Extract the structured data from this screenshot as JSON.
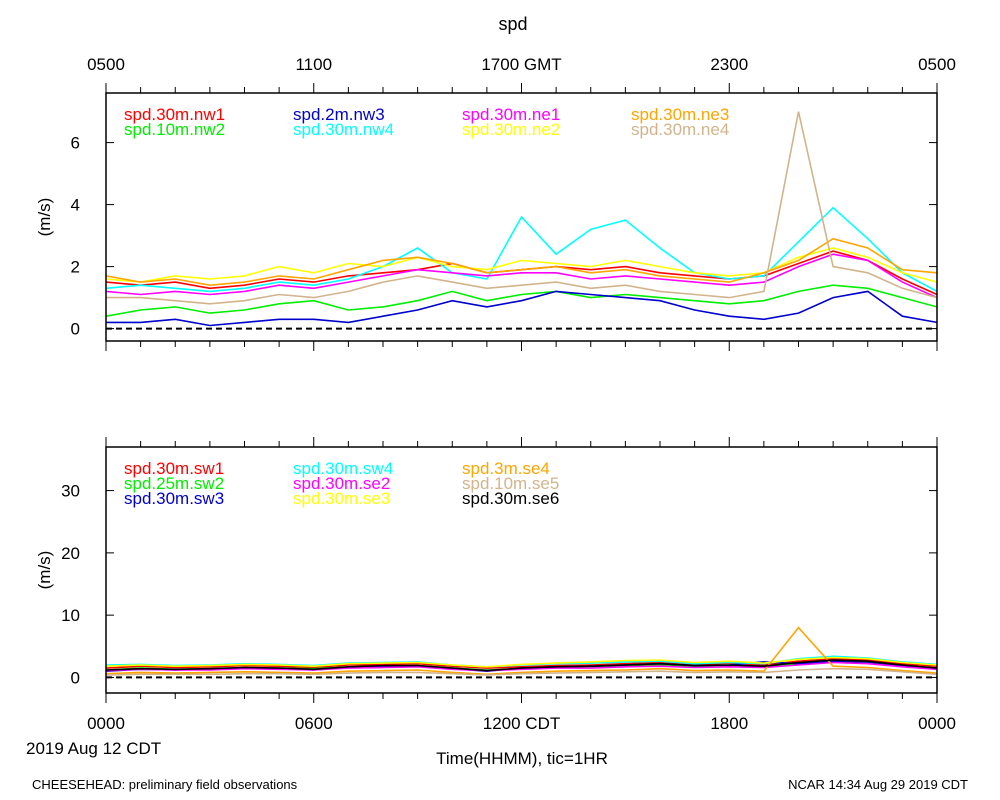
{
  "chart_data": {
    "type": "line",
    "title": "spd",
    "top_axis_ticks": [
      "0500",
      "1100",
      "1700 GMT",
      "2300",
      "0500"
    ],
    "bottom_axis_ticks": [
      "0000",
      "0600",
      "1200 CDT",
      "1800",
      "0000"
    ],
    "x_range_hours": [
      0,
      24
    ],
    "date_label": "2019 Aug 12 CDT",
    "xlabel": "Time(HHMM), tic=1HR",
    "footer_left": "CHEESEHEAD: preliminary field observations",
    "footer_right": "NCAR 14:34 Aug 29 2019 CDT",
    "panels": [
      {
        "ylabel": "(m/s)",
        "ylim": [
          -0.4,
          7.6
        ],
        "yticks": [
          0,
          2,
          4,
          6
        ],
        "zero_line": true,
        "series": [
          {
            "name": "spd.30m.nw1",
            "color": "#ff0000",
            "x": [
              0,
              1,
              2,
              3,
              4,
              5,
              6,
              7,
              8,
              9,
              10,
              11,
              12,
              13,
              14,
              15,
              16,
              17,
              18,
              19,
              20,
              21,
              22,
              23,
              24
            ],
            "values": [
              1.5,
              1.4,
              1.5,
              1.3,
              1.4,
              1.6,
              1.5,
              1.7,
              1.8,
              1.9,
              2.1,
              1.8,
              1.9,
              2.0,
              1.9,
              2.0,
              1.8,
              1.7,
              1.6,
              1.7,
              2.1,
              2.5,
              2.2,
              1.6,
              1.1
            ]
          },
          {
            "name": "spd.10m.nw2",
            "color": "#00ee00",
            "x": [
              0,
              1,
              2,
              3,
              4,
              5,
              6,
              7,
              8,
              9,
              10,
              11,
              12,
              13,
              14,
              15,
              16,
              17,
              18,
              19,
              20,
              21,
              22,
              23,
              24
            ],
            "values": [
              0.4,
              0.6,
              0.7,
              0.5,
              0.6,
              0.8,
              0.9,
              0.6,
              0.7,
              0.9,
              1.2,
              0.9,
              1.1,
              1.2,
              1.0,
              1.1,
              1.0,
              0.9,
              0.8,
              0.9,
              1.2,
              1.4,
              1.3,
              1.0,
              0.7
            ]
          },
          {
            "name": "spd.2m.nw3",
            "color": "#0000cc",
            "x": [
              0,
              1,
              2,
              3,
              4,
              5,
              6,
              7,
              8,
              9,
              10,
              11,
              12,
              13,
              14,
              15,
              16,
              17,
              18,
              19,
              20,
              21,
              22,
              23,
              24
            ],
            "values": [
              0.2,
              0.2,
              0.3,
              0.1,
              0.2,
              0.3,
              0.3,
              0.2,
              0.4,
              0.6,
              0.9,
              0.7,
              0.9,
              1.2,
              1.1,
              1.0,
              0.9,
              0.6,
              0.4,
              0.3,
              0.5,
              1.0,
              1.2,
              0.4,
              0.2
            ]
          },
          {
            "name": "spd.30m.nw4",
            "color": "#00ffff",
            "x": [
              0,
              1,
              2,
              3,
              4,
              5,
              6,
              7,
              8,
              9,
              10,
              11,
              12,
              13,
              14,
              15,
              16,
              17,
              18,
              19,
              20,
              21,
              22,
              23,
              24
            ],
            "values": [
              1.3,
              1.4,
              1.3,
              1.2,
              1.3,
              1.5,
              1.4,
              1.6,
              2.0,
              2.6,
              1.8,
              1.6,
              3.6,
              2.4,
              3.2,
              3.5,
              2.6,
              1.8,
              1.6,
              1.7,
              2.8,
              3.9,
              2.9,
              1.8,
              1.2
            ]
          },
          {
            "name": "spd.30m.ne1",
            "color": "#ff00ff",
            "x": [
              0,
              1,
              2,
              3,
              4,
              5,
              6,
              7,
              8,
              9,
              10,
              11,
              12,
              13,
              14,
              15,
              16,
              17,
              18,
              19,
              20,
              21,
              22,
              23,
              24
            ],
            "values": [
              1.2,
              1.1,
              1.2,
              1.1,
              1.2,
              1.4,
              1.3,
              1.5,
              1.7,
              1.9,
              1.8,
              1.7,
              1.8,
              1.8,
              1.6,
              1.7,
              1.6,
              1.5,
              1.4,
              1.5,
              2.0,
              2.4,
              2.2,
              1.5,
              1.0
            ]
          },
          {
            "name": "spd.30m.ne2",
            "color": "#ffff00",
            "x": [
              0,
              1,
              2,
              3,
              4,
              5,
              6,
              7,
              8,
              9,
              10,
              11,
              12,
              13,
              14,
              15,
              16,
              17,
              18,
              19,
              20,
              21,
              22,
              23,
              24
            ],
            "values": [
              1.6,
              1.5,
              1.7,
              1.6,
              1.7,
              2.0,
              1.8,
              2.1,
              2.0,
              2.3,
              2.0,
              1.9,
              2.2,
              2.1,
              2.0,
              2.2,
              2.0,
              1.8,
              1.7,
              1.8,
              2.3,
              2.6,
              2.3,
              1.8,
              1.5
            ]
          },
          {
            "name": "spd.30m.ne3",
            "color": "#ffa500",
            "x": [
              0,
              1,
              2,
              3,
              4,
              5,
              6,
              7,
              8,
              9,
              10,
              11,
              12,
              13,
              14,
              15,
              16,
              17,
              18,
              19,
              20,
              21,
              22,
              23,
              24
            ],
            "values": [
              1.7,
              1.5,
              1.6,
              1.4,
              1.5,
              1.7,
              1.6,
              1.9,
              2.2,
              2.3,
              2.1,
              1.8,
              1.9,
              2.0,
              1.8,
              1.9,
              1.7,
              1.6,
              1.5,
              1.8,
              2.2,
              2.9,
              2.6,
              1.9,
              1.8
            ]
          },
          {
            "name": "spd.30m.ne4",
            "color": "#d2b48c",
            "x": [
              0,
              1,
              2,
              3,
              4,
              5,
              6,
              7,
              8,
              9,
              10,
              11,
              12,
              13,
              14,
              15,
              16,
              17,
              18,
              19,
              20,
              21,
              22,
              23,
              24
            ],
            "values": [
              1.0,
              1.0,
              0.9,
              0.8,
              0.9,
              1.1,
              1.0,
              1.2,
              1.5,
              1.7,
              1.5,
              1.3,
              1.4,
              1.5,
              1.3,
              1.4,
              1.2,
              1.1,
              1.0,
              1.2,
              7.0,
              2.0,
              1.8,
              1.3,
              1.0
            ]
          }
        ]
      },
      {
        "ylabel": "(m/s)",
        "ylim": [
          -2.5,
          37
        ],
        "yticks": [
          0,
          10,
          20,
          30
        ],
        "zero_line": true,
        "series": [
          {
            "name": "spd.30m.sw1",
            "color": "#ff0000",
            "x": [
              0,
              1,
              2,
              3,
              4,
              5,
              6,
              7,
              8,
              9,
              10,
              11,
              12,
              13,
              14,
              15,
              16,
              17,
              18,
              19,
              20,
              21,
              22,
              23,
              24
            ],
            "values": [
              1.5,
              1.8,
              1.6,
              1.7,
              1.9,
              1.8,
              1.6,
              2.0,
              2.1,
              2.2,
              1.8,
              1.5,
              1.7,
              1.9,
              2.0,
              2.2,
              2.4,
              2.0,
              2.3,
              2.0,
              2.6,
              3.0,
              2.8,
              2.2,
              1.8
            ]
          },
          {
            "name": "spd.25m.sw2",
            "color": "#00ee00",
            "x": [
              0,
              1,
              2,
              3,
              4,
              5,
              6,
              7,
              8,
              9,
              10,
              11,
              12,
              13,
              14,
              15,
              16,
              17,
              18,
              19,
              20,
              21,
              22,
              23,
              24
            ],
            "values": [
              1.2,
              1.5,
              1.3,
              1.4,
              1.6,
              1.5,
              1.4,
              1.7,
              1.8,
              1.9,
              1.5,
              1.2,
              1.4,
              1.6,
              1.7,
              1.9,
              2.0,
              1.7,
              1.9,
              1.7,
              2.2,
              2.6,
              2.4,
              1.9,
              1.5
            ]
          },
          {
            "name": "spd.30m.sw3",
            "color": "#0000cc",
            "x": [
              0,
              1,
              2,
              3,
              4,
              5,
              6,
              7,
              8,
              9,
              10,
              11,
              12,
              13,
              14,
              15,
              16,
              17,
              18,
              19,
              20,
              21,
              22,
              23,
              24
            ],
            "values": [
              1.0,
              1.3,
              1.2,
              1.3,
              1.5,
              1.4,
              1.2,
              1.6,
              1.8,
              1.8,
              1.4,
              1.0,
              1.5,
              1.7,
              1.8,
              2.0,
              2.2,
              1.9,
              2.0,
              2.5,
              2.2,
              2.6,
              2.5,
              1.9,
              1.4
            ]
          },
          {
            "name": "spd.30m.sw4",
            "color": "#00ffff",
            "x": [
              0,
              1,
              2,
              3,
              4,
              5,
              6,
              7,
              8,
              9,
              10,
              11,
              12,
              13,
              14,
              15,
              16,
              17,
              18,
              19,
              20,
              21,
              22,
              23,
              24
            ],
            "values": [
              2.0,
              2.1,
              1.9,
              2.0,
              2.2,
              2.1,
              1.9,
              2.3,
              2.4,
              2.5,
              2.0,
              1.7,
              2.0,
              2.2,
              2.3,
              2.5,
              2.6,
              2.2,
              2.4,
              2.2,
              3.0,
              3.4,
              3.1,
              2.5,
              2.1
            ]
          },
          {
            "name": "spd.30m.se2",
            "color": "#ff00ff",
            "x": [
              0,
              1,
              2,
              3,
              4,
              5,
              6,
              7,
              8,
              9,
              10,
              11,
              12,
              13,
              14,
              15,
              16,
              17,
              18,
              19,
              20,
              21,
              22,
              23,
              24
            ],
            "values": [
              1.1,
              1.3,
              1.2,
              1.2,
              1.4,
              1.3,
              1.2,
              1.5,
              1.6,
              1.7,
              1.3,
              1.1,
              1.3,
              1.5,
              1.5,
              1.7,
              1.8,
              1.6,
              1.7,
              1.6,
              2.0,
              2.4,
              2.2,
              1.7,
              1.3
            ]
          },
          {
            "name": "spd.30m.se3",
            "color": "#ffff00",
            "x": [
              0,
              1,
              2,
              3,
              4,
              5,
              6,
              7,
              8,
              9,
              10,
              11,
              12,
              13,
              14,
              15,
              16,
              17,
              18,
              19,
              20,
              21,
              22,
              23,
              24
            ],
            "values": [
              1.8,
              2.0,
              1.8,
              1.9,
              2.1,
              2.0,
              1.8,
              2.2,
              2.3,
              2.4,
              2.0,
              1.7,
              2.1,
              2.3,
              2.5,
              2.7,
              2.8,
              2.4,
              2.6,
              2.3,
              2.9,
              3.2,
              3.0,
              2.4,
              2.0
            ]
          },
          {
            "name": "spd.3m.se4",
            "color": "#ffa500",
            "x": [
              0,
              1,
              2,
              3,
              4,
              5,
              6,
              7,
              8,
              9,
              10,
              11,
              12,
              13,
              14,
              15,
              16,
              17,
              18,
              19,
              20,
              21,
              22,
              23,
              24
            ],
            "values": [
              0.6,
              0.8,
              0.7,
              0.8,
              0.9,
              0.8,
              0.7,
              1.0,
              1.1,
              1.2,
              0.8,
              0.5,
              0.8,
              1.0,
              1.1,
              1.2,
              1.4,
              1.1,
              1.2,
              1.0,
              8.0,
              1.8,
              1.6,
              1.1,
              0.7
            ]
          },
          {
            "name": "spd.10m.se5",
            "color": "#d2b48c",
            "x": [
              0,
              1,
              2,
              3,
              4,
              5,
              6,
              7,
              8,
              9,
              10,
              11,
              12,
              13,
              14,
              15,
              16,
              17,
              18,
              19,
              20,
              21,
              22,
              23,
              24
            ],
            "values": [
              0.4,
              0.5,
              0.5,
              0.5,
              0.6,
              0.6,
              0.5,
              0.7,
              0.8,
              0.8,
              0.6,
              0.4,
              0.6,
              0.7,
              0.8,
              0.9,
              1.0,
              0.8,
              0.9,
              0.8,
              1.2,
              1.4,
              1.3,
              0.9,
              0.5
            ]
          },
          {
            "name": "spd.30m.se6",
            "color": "#000000",
            "x": [
              0,
              1,
              2,
              3,
              4,
              5,
              6,
              7,
              8,
              9,
              10,
              11,
              12,
              13,
              14,
              15,
              16,
              17,
              18,
              19,
              20,
              21,
              22,
              23,
              24
            ],
            "values": [
              1.2,
              1.4,
              1.3,
              1.4,
              1.6,
              1.5,
              1.3,
              1.7,
              1.9,
              1.9,
              1.5,
              1.1,
              1.5,
              1.7,
              1.8,
              2.0,
              2.2,
              1.9,
              2.0,
              1.8,
              2.4,
              2.8,
              2.6,
              2.0,
              1.5
            ]
          }
        ]
      }
    ]
  }
}
